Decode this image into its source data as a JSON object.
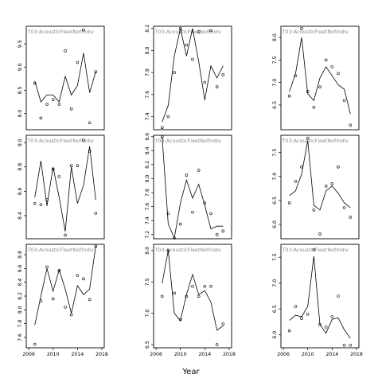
{
  "chart_data": {
    "type": "scatter",
    "xlabel": "Year",
    "xlim": [
      2005.6,
      2018.4
    ],
    "xticks": [
      2006,
      2010,
      2014,
      2018
    ],
    "grid": false,
    "panels": [
      {
        "title": "T03:AcousticFleetNofIndiv",
        "ylim": [
          7.65,
          9.88
        ],
        "yticks": [
          8.0,
          8.5,
          9.0,
          9.5
        ],
        "x": [
          2007,
          2008,
          2009,
          2010,
          2011,
          2012,
          2013,
          2014,
          2015,
          2016,
          2017
        ],
        "points": [
          8.65,
          7.9,
          8.2,
          8.3,
          8.2,
          9.35,
          8.1,
          9.1,
          9.8,
          7.8,
          8.9
        ],
        "line": [
          8.7,
          8.25,
          8.4,
          8.4,
          8.25,
          8.8,
          8.4,
          8.6,
          9.3,
          8.45,
          8.9
        ]
      },
      {
        "title": "T03:AcousticFleetNofIndiv",
        "ylim": [
          7.28,
          8.22
        ],
        "yticks": [
          7.4,
          7.6,
          7.8,
          8.0,
          8.2
        ],
        "x": [
          2007,
          2008,
          2009,
          2010,
          2011,
          2012,
          2013,
          2014,
          2015,
          2016,
          2017
        ],
        "points": [
          7.3,
          7.4,
          7.8,
          8.2,
          8.05,
          7.92,
          8.17,
          7.71,
          8.18,
          7.67,
          7.78
        ],
        "line": [
          7.35,
          7.5,
          7.95,
          8.2,
          7.95,
          8.2,
          7.9,
          7.55,
          7.86,
          7.75,
          7.86
        ]
      },
      {
        "title": "T03:AcousticFleetNofIndiv",
        "ylim": [
          5.95,
          8.25
        ],
        "yticks": [
          6.5,
          7.0,
          7.5,
          8.0
        ],
        "x": [
          2007,
          2008,
          2009,
          2010,
          2011,
          2012,
          2013,
          2014,
          2015,
          2016,
          2017
        ],
        "points": [
          6.7,
          7.15,
          8.2,
          6.8,
          6.45,
          6.9,
          7.5,
          7.35,
          7.2,
          6.6,
          6.05
        ],
        "line": [
          6.8,
          7.2,
          8.0,
          6.75,
          6.6,
          7.1,
          7.35,
          7.15,
          6.95,
          6.85,
          6.3
        ]
      },
      {
        "title": "T03:AcousticFleetNofIndiv",
        "ylim": [
          8.21,
          9.06
        ],
        "yticks": [
          8.4,
          8.6,
          8.8,
          9.0
        ],
        "x": [
          2007,
          2008,
          2009,
          2010,
          2011,
          2012,
          2013,
          2014,
          2015,
          2016,
          2017
        ],
        "points": [
          8.5,
          8.49,
          8.53,
          8.78,
          8.72,
          8.24,
          8.81,
          8.81,
          9.02,
          8.93,
          8.42
        ],
        "line": [
          8.55,
          8.85,
          8.48,
          8.8,
          8.55,
          8.27,
          8.8,
          8.5,
          8.65,
          8.97,
          8.53
        ]
      },
      {
        "title": "T03:AcousticFleetNofIndiv",
        "ylim": [
          7.14,
          8.62
        ],
        "yticks": [
          7.2,
          7.4,
          7.6,
          7.8,
          8.0,
          8.2,
          8.4,
          8.6
        ],
        "x": [
          2007,
          2008,
          2009,
          2010,
          2011,
          2012,
          2013,
          2014,
          2015,
          2016,
          2017
        ],
        "points": [
          8.6,
          7.5,
          7.15,
          7.35,
          8.05,
          7.52,
          8.12,
          7.65,
          7.5,
          7.2,
          7.25
        ],
        "line": [
          8.6,
          7.35,
          7.15,
          7.65,
          7.98,
          7.72,
          7.92,
          7.62,
          7.28,
          7.32,
          7.32
        ]
      },
      {
        "title": "T03:AcousticFleetNofIndiv",
        "ylim": [
          5.7,
          7.86
        ],
        "yticks": [
          6.0,
          6.5,
          7.0,
          7.5
        ],
        "x": [
          2007,
          2008,
          2009,
          2010,
          2011,
          2012,
          2013,
          2014,
          2015,
          2016,
          2017
        ],
        "points": [
          6.45,
          6.9,
          7.2,
          7.8,
          6.3,
          5.8,
          6.8,
          6.85,
          7.2,
          6.35,
          6.15
        ],
        "line": [
          6.6,
          6.7,
          7.05,
          7.75,
          6.4,
          6.3,
          6.7,
          6.8,
          6.65,
          6.45,
          6.35
        ]
      },
      {
        "title": "T03:AcousticFleetNofIndiv",
        "ylim": [
          7.45,
          8.95
        ],
        "yticks": [
          7.6,
          7.8,
          8.0,
          8.2,
          8.4,
          8.6,
          8.8
        ],
        "x": [
          2007,
          2008,
          2009,
          2010,
          2011,
          2012,
          2013,
          2014,
          2015,
          2016,
          2017
        ],
        "points": [
          7.5,
          8.13,
          8.62,
          8.16,
          8.57,
          8.04,
          7.93,
          8.5,
          8.45,
          8.15,
          8.92
        ],
        "line": [
          7.78,
          8.2,
          8.6,
          8.27,
          8.58,
          8.3,
          7.95,
          8.35,
          8.22,
          8.3,
          8.92
        ]
      },
      {
        "title": "T03:AcousticFleetNofIndiv",
        "ylim": [
          6.45,
          8.1
        ],
        "yticks": [
          6.5,
          7.0,
          7.5,
          8.0
        ],
        "x": [
          2007,
          2008,
          2009,
          2010,
          2011,
          2012,
          2013,
          2014,
          2015,
          2016,
          2017
        ],
        "points": [
          7.27,
          8.0,
          7.32,
          6.9,
          7.27,
          7.43,
          7.27,
          7.43,
          7.43,
          6.5,
          6.83
        ],
        "line": [
          7.48,
          8.0,
          7.0,
          6.88,
          7.3,
          7.62,
          7.3,
          7.36,
          7.18,
          6.73,
          6.8
        ]
      },
      {
        "title": "T03:AcousticFleetNofIndiv",
        "ylim": [
          5.75,
          7.75
        ],
        "yticks": [
          6.0,
          6.5,
          7.0,
          7.5
        ],
        "x": [
          2007,
          2008,
          2009,
          2010,
          2011,
          2012,
          2013,
          2014,
          2015,
          2016,
          2017
        ],
        "points": [
          6.08,
          6.55,
          6.32,
          6.4,
          7.65,
          6.2,
          6.15,
          6.35,
          6.75,
          5.8,
          5.8
        ],
        "line": [
          6.28,
          6.38,
          6.35,
          6.55,
          7.52,
          6.2,
          6.03,
          6.3,
          6.33,
          6.1,
          5.93
        ]
      }
    ]
  }
}
